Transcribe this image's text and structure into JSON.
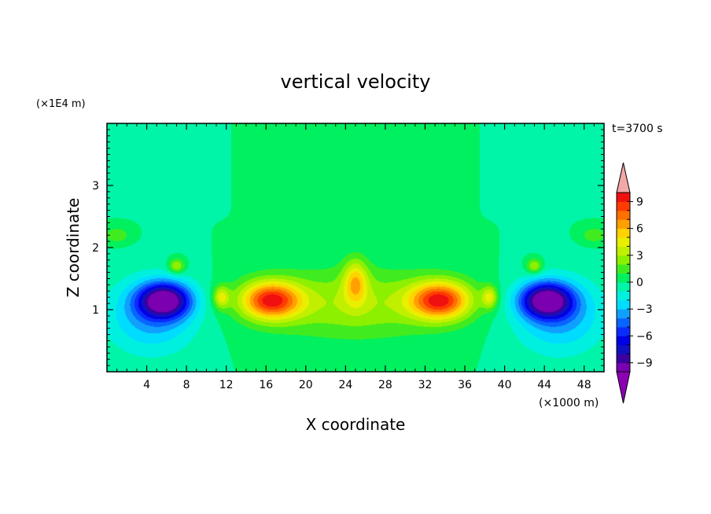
{
  "chart_data": {
    "type": "heatmap",
    "title": "vertical velocity",
    "xlabel": "X coordinate",
    "ylabel": "Z coordinate",
    "x_unit": "(×1000 m)",
    "y_unit": "(×1E4 m)",
    "time_label": "t=3700 s",
    "xlim": [
      0,
      50
    ],
    "ylim": [
      0,
      4
    ],
    "x_ticks": [
      4,
      8,
      12,
      16,
      20,
      24,
      28,
      32,
      36,
      40,
      44,
      48
    ],
    "y_ticks": [
      1,
      2,
      3
    ],
    "x_tick_labels": [
      "4",
      "8",
      "12",
      "16",
      "20",
      "24",
      "28",
      "32",
      "36",
      "40",
      "44",
      "48"
    ],
    "y_tick_labels": [
      "1",
      "2",
      "3"
    ],
    "colorbar": {
      "levels": [
        -10,
        -9,
        -8,
        -7,
        -6,
        -5,
        -4,
        -3,
        -2,
        -1,
        0,
        1,
        2,
        3,
        4,
        5,
        6,
        7,
        8,
        9,
        10
      ],
      "tick_values": [
        -9,
        -6,
        -3,
        0,
        3,
        6,
        9
      ],
      "tick_labels": [
        "−9",
        "−6",
        "−3",
        "0",
        "3",
        "6",
        "9"
      ],
      "colors": [
        "#7a00b0",
        "#3a00a0",
        "#1010c0",
        "#0000e6",
        "#0a2cff",
        "#0a64ff",
        "#0fa0ff",
        "#00dcff",
        "#00f0e0",
        "#00f5a8",
        "#00f060",
        "#40ec20",
        "#8cf000",
        "#c0f000",
        "#e8f000",
        "#ffd200",
        "#ffa000",
        "#ff7000",
        "#ff3c00",
        "#f01010"
      ],
      "under_color": "#8c00b4",
      "over_color": "#f2a8a8"
    },
    "field_model": {
      "description_units": "vertical velocity in m/s; x in km (×1000 m), z in ×1E4 m",
      "features": [
        {
          "kind": "updraft",
          "x": 16.5,
          "z": 1.15,
          "amp": 8.6,
          "sx": 3.0,
          "sz": 0.3
        },
        {
          "kind": "updraft",
          "x": 33.5,
          "z": 1.15,
          "amp": 8.6,
          "sx": 3.0,
          "sz": 0.3
        },
        {
          "kind": "updraft",
          "x": 25,
          "z": 1.45,
          "amp": 4.5,
          "sx": 1.2,
          "sz": 0.35
        },
        {
          "kind": "updraft",
          "x": 11.5,
          "z": 1.2,
          "amp": 4.0,
          "sx": 0.8,
          "sz": 0.18
        },
        {
          "kind": "updraft",
          "x": 38.5,
          "z": 1.2,
          "amp": 4.0,
          "sx": 0.8,
          "sz": 0.18
        },
        {
          "kind": "broad_updraft",
          "x": 25,
          "z": 1.1,
          "amp": 3.0,
          "sx": 9.5,
          "sz": 0.55
        },
        {
          "kind": "downdraft",
          "x": 5.8,
          "z": 1.15,
          "amp": -9.3,
          "sx": 2.6,
          "sz": 0.28
        },
        {
          "kind": "downdraft",
          "x": 44.2,
          "z": 1.15,
          "amp": -9.3,
          "sx": 2.6,
          "sz": 0.28
        },
        {
          "kind": "downdraft_wide",
          "x": 4.5,
          "z": 0.9,
          "amp": -3.5,
          "sx": 4.5,
          "sz": 0.6
        },
        {
          "kind": "downdraft_wide",
          "x": 45.5,
          "z": 0.9,
          "amp": -3.5,
          "sx": 4.5,
          "sz": 0.6
        },
        {
          "kind": "updraft",
          "x": 7.0,
          "z": 1.7,
          "amp": 3.5,
          "sx": 0.8,
          "sz": 0.12
        },
        {
          "kind": "updraft",
          "x": 43.0,
          "z": 1.7,
          "amp": 3.5,
          "sx": 0.8,
          "sz": 0.12
        },
        {
          "kind": "updraft",
          "x": 1.0,
          "z": 2.2,
          "amp": 2.0,
          "sx": 1.2,
          "sz": 0.12
        },
        {
          "kind": "updraft",
          "x": 49.0,
          "z": 2.2,
          "amp": 2.0,
          "sx": 1.2,
          "sz": 0.12
        }
      ]
    }
  }
}
